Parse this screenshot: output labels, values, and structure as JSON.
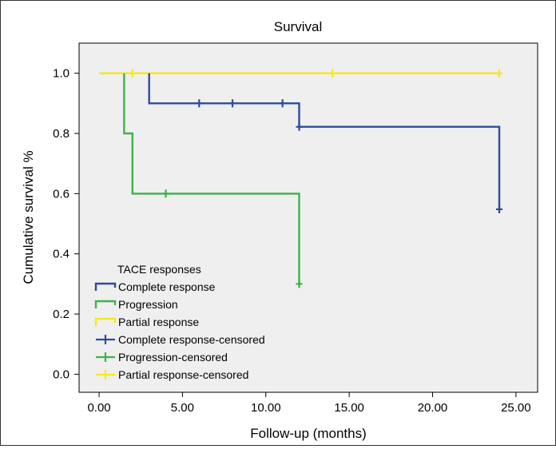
{
  "chart_data": {
    "type": "line",
    "subtype": "kaplan-meier",
    "title": "Survival",
    "xlabel": "Follow-up (months)",
    "ylabel": "Cumulative survival %",
    "xlim": [
      -1.2,
      26.3
    ],
    "ylim": [
      -0.06,
      1.1
    ],
    "xticks": [
      0,
      5,
      10,
      15,
      20,
      25
    ],
    "xtick_labels": [
      "0.00",
      "5.00",
      "10.00",
      "15.00",
      "20.00",
      "25.00"
    ],
    "yticks": [
      0,
      0.2,
      0.4,
      0.6,
      0.8,
      1.0
    ],
    "ytick_labels": [
      "0.0",
      "0.2",
      "0.4",
      "0.6",
      "0.8",
      "1.0"
    ],
    "grid": false,
    "plot_background": "#efefef",
    "legend": {
      "title": "TACE responses",
      "position": "lower-left",
      "entries": [
        {
          "label": "Complete response",
          "color": "#2e4c9c",
          "marker": "step"
        },
        {
          "label": "Progression",
          "color": "#3cb44a",
          "marker": "step"
        },
        {
          "label": "Partial response",
          "color": "#f2ea1a",
          "marker": "step"
        },
        {
          "label": "Complete response-censored",
          "color": "#2e4c9c",
          "marker": "plus"
        },
        {
          "label": "Progression-censored",
          "color": "#3cb44a",
          "marker": "plus"
        },
        {
          "label": "Partial response-censored",
          "color": "#f2ea1a",
          "marker": "plus"
        }
      ]
    },
    "series": [
      {
        "name": "Partial response",
        "color": "#f2ea1a",
        "steps": [
          [
            0,
            1.0
          ],
          [
            24,
            1.0
          ]
        ],
        "censored": [
          [
            2,
            1.0
          ],
          [
            14,
            1.0
          ],
          [
            24,
            1.0
          ]
        ]
      },
      {
        "name": "Complete response",
        "color": "#2e4c9c",
        "steps": [
          [
            3,
            1.0
          ],
          [
            3,
            0.9
          ],
          [
            12,
            0.9
          ],
          [
            12,
            0.822
          ],
          [
            24,
            0.822
          ],
          [
            24,
            0.548
          ]
        ],
        "censored": [
          [
            6,
            0.9
          ],
          [
            8,
            0.9
          ],
          [
            11,
            0.9
          ],
          [
            12,
            0.822
          ],
          [
            24,
            0.548
          ]
        ]
      },
      {
        "name": "Progression",
        "color": "#3cb44a",
        "steps": [
          [
            1.5,
            1.0
          ],
          [
            1.5,
            0.8
          ],
          [
            2,
            0.8
          ],
          [
            2,
            0.6
          ],
          [
            12,
            0.6
          ],
          [
            12,
            0.3
          ]
        ],
        "censored": [
          [
            4,
            0.6
          ],
          [
            12,
            0.3
          ]
        ]
      }
    ]
  }
}
